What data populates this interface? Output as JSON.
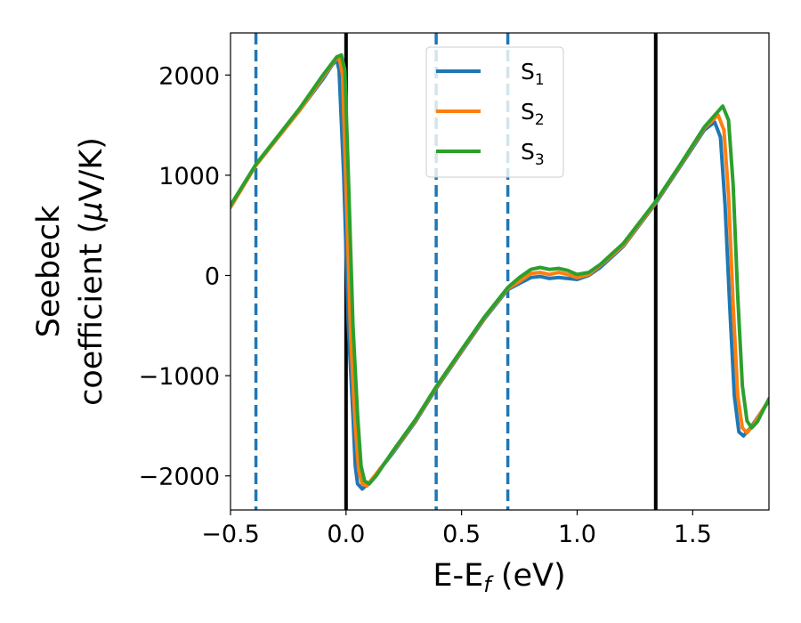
{
  "chart_data": {
    "type": "line",
    "title": "",
    "xlabel": {
      "main": "E-E",
      "sub": "f",
      "suffix": " (eV)"
    },
    "ylabel": {
      "line1": "Seebeck",
      "line2_pre": "coefficient  (",
      "mu": "μ",
      "line2_post": "V/K)"
    },
    "xlim": [
      -0.5,
      1.83
    ],
    "ylim": [
      -2340,
      2420
    ],
    "xticks": [
      {
        "value": -0.5,
        "label": "−0.5"
      },
      {
        "value": 0.0,
        "label": "0.0"
      },
      {
        "value": 0.5,
        "label": "0.5"
      },
      {
        "value": 1.0,
        "label": "1.0"
      },
      {
        "value": 1.5,
        "label": "1.5"
      }
    ],
    "yticks": [
      {
        "value": -2000,
        "label": "−2000"
      },
      {
        "value": -1000,
        "label": "−1000"
      },
      {
        "value": 0,
        "label": "0"
      },
      {
        "value": 1000,
        "label": "1000"
      },
      {
        "value": 2000,
        "label": "2000"
      }
    ],
    "grid": false,
    "legend_position": "top-center",
    "vlines": [
      {
        "x": -0.39,
        "style": "dashed",
        "color": "#1f77b4"
      },
      {
        "x": 0.0,
        "style": "solid",
        "color": "#000000"
      },
      {
        "x": 0.39,
        "style": "dashed",
        "color": "#1f77b4"
      },
      {
        "x": 0.7,
        "style": "dashed",
        "color": "#1f77b4"
      },
      {
        "x": 1.34,
        "style": "solid",
        "color": "#000000"
      }
    ],
    "series": [
      {
        "name": "S",
        "sub": "1",
        "color": "#1f77b4",
        "points": [
          [
            -0.5,
            680
          ],
          [
            -0.39,
            1100
          ],
          [
            -0.2,
            1650
          ],
          [
            -0.1,
            1960
          ],
          [
            -0.06,
            2100
          ],
          [
            -0.04,
            2150
          ],
          [
            -0.03,
            2050
          ],
          [
            -0.01,
            1000
          ],
          [
            0.01,
            -500
          ],
          [
            0.03,
            -1400
          ],
          [
            0.04,
            -1900
          ],
          [
            0.05,
            -2080
          ],
          [
            0.07,
            -2130
          ],
          [
            0.1,
            -2070
          ],
          [
            0.2,
            -1780
          ],
          [
            0.3,
            -1460
          ],
          [
            0.39,
            -1130
          ],
          [
            0.5,
            -760
          ],
          [
            0.6,
            -430
          ],
          [
            0.7,
            -140
          ],
          [
            0.75,
            -80
          ],
          [
            0.8,
            -20
          ],
          [
            0.84,
            -10
          ],
          [
            0.88,
            -30
          ],
          [
            0.92,
            -20
          ],
          [
            0.96,
            -30
          ],
          [
            1.0,
            -40
          ],
          [
            1.05,
            0
          ],
          [
            1.1,
            80
          ],
          [
            1.2,
            290
          ],
          [
            1.34,
            720
          ],
          [
            1.45,
            1100
          ],
          [
            1.55,
            1450
          ],
          [
            1.595,
            1530
          ],
          [
            1.62,
            1380
          ],
          [
            1.64,
            700
          ],
          [
            1.66,
            -300
          ],
          [
            1.68,
            -1200
          ],
          [
            1.7,
            -1560
          ],
          [
            1.72,
            -1600
          ],
          [
            1.75,
            -1520
          ],
          [
            1.83,
            -1250
          ]
        ]
      },
      {
        "name": "S",
        "sub": "2",
        "color": "#ff7f0e",
        "points": [
          [
            -0.5,
            680
          ],
          [
            -0.39,
            1100
          ],
          [
            -0.2,
            1650
          ],
          [
            -0.1,
            1980
          ],
          [
            -0.05,
            2140
          ],
          [
            -0.03,
            2180
          ],
          [
            -0.015,
            2000
          ],
          [
            0.0,
            900
          ],
          [
            0.02,
            -600
          ],
          [
            0.04,
            -1500
          ],
          [
            0.055,
            -1950
          ],
          [
            0.07,
            -2080
          ],
          [
            0.09,
            -2100
          ],
          [
            0.12,
            -2010
          ],
          [
            0.2,
            -1770
          ],
          [
            0.3,
            -1450
          ],
          [
            0.39,
            -1120
          ],
          [
            0.5,
            -750
          ],
          [
            0.6,
            -420
          ],
          [
            0.7,
            -130
          ],
          [
            0.75,
            -60
          ],
          [
            0.8,
            20
          ],
          [
            0.84,
            30
          ],
          [
            0.88,
            10
          ],
          [
            0.92,
            30
          ],
          [
            0.96,
            10
          ],
          [
            1.0,
            -20
          ],
          [
            1.05,
            10
          ],
          [
            1.1,
            100
          ],
          [
            1.2,
            300
          ],
          [
            1.34,
            730
          ],
          [
            1.45,
            1110
          ],
          [
            1.55,
            1470
          ],
          [
            1.61,
            1600
          ],
          [
            1.635,
            1450
          ],
          [
            1.655,
            800
          ],
          [
            1.675,
            -300
          ],
          [
            1.695,
            -1200
          ],
          [
            1.715,
            -1520
          ],
          [
            1.735,
            -1570
          ],
          [
            1.76,
            -1500
          ],
          [
            1.83,
            -1240
          ]
        ]
      },
      {
        "name": "S",
        "sub": "3",
        "color": "#2ca02c",
        "points": [
          [
            -0.5,
            700
          ],
          [
            -0.39,
            1110
          ],
          [
            -0.2,
            1670
          ],
          [
            -0.1,
            2000
          ],
          [
            -0.04,
            2180
          ],
          [
            -0.02,
            2200
          ],
          [
            -0.005,
            2050
          ],
          [
            0.01,
            1000
          ],
          [
            0.03,
            -500
          ],
          [
            0.05,
            -1400
          ],
          [
            0.065,
            -1900
          ],
          [
            0.08,
            -2050
          ],
          [
            0.1,
            -2080
          ],
          [
            0.13,
            -2000
          ],
          [
            0.2,
            -1760
          ],
          [
            0.3,
            -1440
          ],
          [
            0.39,
            -1110
          ],
          [
            0.5,
            -740
          ],
          [
            0.6,
            -410
          ],
          [
            0.7,
            -120
          ],
          [
            0.75,
            -20
          ],
          [
            0.8,
            60
          ],
          [
            0.84,
            80
          ],
          [
            0.88,
            60
          ],
          [
            0.92,
            70
          ],
          [
            0.96,
            50
          ],
          [
            1.0,
            10
          ],
          [
            1.05,
            30
          ],
          [
            1.1,
            110
          ],
          [
            1.2,
            320
          ],
          [
            1.34,
            740
          ],
          [
            1.45,
            1120
          ],
          [
            1.55,
            1480
          ],
          [
            1.63,
            1690
          ],
          [
            1.655,
            1550
          ],
          [
            1.675,
            900
          ],
          [
            1.695,
            -200
          ],
          [
            1.715,
            -1100
          ],
          [
            1.735,
            -1450
          ],
          [
            1.755,
            -1520
          ],
          [
            1.78,
            -1460
          ],
          [
            1.83,
            -1230
          ]
        ]
      }
    ]
  }
}
